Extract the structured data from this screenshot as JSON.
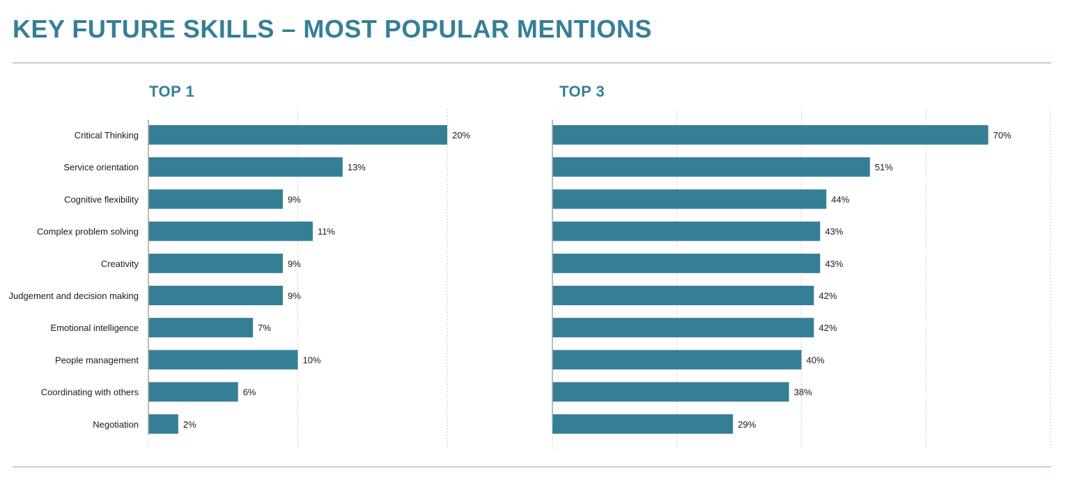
{
  "page": {
    "title": "KEY FUTURE SKILLS – MOST POPULAR MENTIONS"
  },
  "colors": {
    "accent": "#357f96",
    "bar": "#357f96",
    "gridline": "#b9b9b9",
    "axis": "#a6a6a6",
    "rule": "#8aa9b5"
  },
  "chart_data": [
    {
      "type": "bar",
      "orientation": "horizontal",
      "title": "TOP 1",
      "categories": [
        "Critical Thinking",
        "Service orientation",
        "Cognitive flexibility",
        "Complex problem solving",
        "Creativity",
        "Judgement and decision making",
        "Emotional intelligence",
        "People management",
        "Coordinating with others",
        "Negotiation"
      ],
      "values": [
        20,
        13,
        9,
        11,
        9,
        9,
        7,
        10,
        6,
        2
      ],
      "data_labels": [
        "20%",
        "13%",
        "9%",
        "11%",
        "9%",
        "9%",
        "7%",
        "10%",
        "6%",
        "2%"
      ],
      "xlim": [
        0,
        20
      ],
      "grid": true,
      "grid_style": "dotted",
      "grid_step": 10
    },
    {
      "type": "bar",
      "orientation": "horizontal",
      "title": "TOP 3",
      "categories": [
        "Critical Thinking",
        "Service orientation",
        "Cognitive flexibility",
        "Complex problem solving",
        "Creativity",
        "Judgement and decision making",
        "Emotional intelligence",
        "People management",
        "Coordinating with others",
        "Negotiation"
      ],
      "values": [
        70,
        51,
        44,
        43,
        43,
        42,
        42,
        40,
        38,
        29
      ],
      "data_labels": [
        "70%",
        "51%",
        "44%",
        "43%",
        "43%",
        "42%",
        "42%",
        "40%",
        "38%",
        "29%"
      ],
      "xlim": [
        0,
        80
      ],
      "grid": true,
      "grid_style": "dotted",
      "grid_step": 20
    }
  ]
}
